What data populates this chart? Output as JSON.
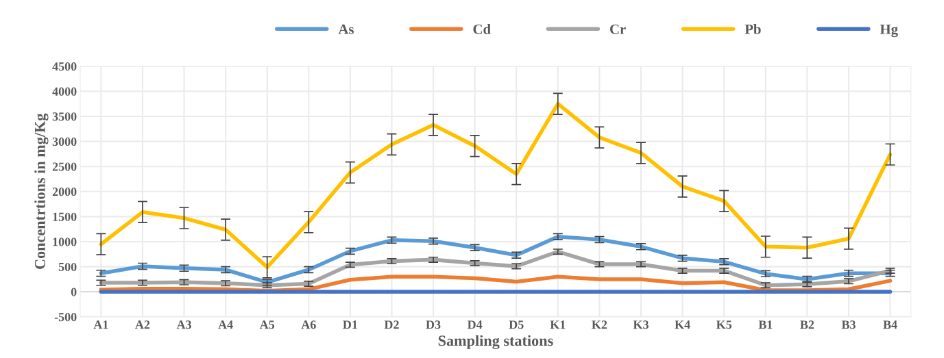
{
  "chart_data": {
    "type": "line",
    "xlabel": "Sampling stations",
    "ylabel": "Concentrtions in mg/Kg",
    "categories": [
      "A1",
      "A2",
      "A3",
      "A4",
      "A5",
      "A6",
      "D1",
      "D2",
      "D3",
      "D4",
      "D5",
      "K1",
      "K2",
      "K3",
      "K4",
      "K5",
      "B1",
      "B2",
      "B3",
      "B4"
    ],
    "series": [
      {
        "name": "As",
        "color": "#5b9bd5",
        "values": [
          370,
          510,
          470,
          440,
          190,
          440,
          810,
          1030,
          1010,
          880,
          730,
          1100,
          1040,
          900,
          670,
          600,
          360,
          250,
          370,
          370
        ],
        "errors": [
          60,
          60,
          60,
          60,
          60,
          60,
          60,
          60,
          60,
          60,
          60,
          60,
          60,
          60,
          60,
          60,
          60,
          60,
          60,
          60
        ]
      },
      {
        "name": "Cd",
        "color": "#ed7d31",
        "values": [
          40,
          60,
          60,
          50,
          20,
          50,
          240,
          300,
          300,
          270,
          200,
          300,
          250,
          250,
          170,
          190,
          30,
          30,
          50,
          220
        ]
      },
      {
        "name": "Cr",
        "color": "#a5a5a5",
        "values": [
          180,
          180,
          190,
          170,
          130,
          160,
          540,
          610,
          640,
          570,
          510,
          800,
          550,
          550,
          420,
          420,
          130,
          150,
          210,
          420
        ],
        "errors": [
          50,
          50,
          50,
          50,
          50,
          50,
          50,
          50,
          50,
          50,
          50,
          50,
          50,
          50,
          50,
          50,
          50,
          50,
          50,
          50
        ]
      },
      {
        "name": "Pb",
        "color": "#ffc000",
        "values": [
          950,
          1590,
          1470,
          1240,
          490,
          1390,
          2380,
          2940,
          3330,
          2910,
          2350,
          3750,
          3080,
          2770,
          2100,
          1810,
          900,
          880,
          1060,
          2740
        ],
        "errors": [
          210,
          210,
          210,
          210,
          210,
          210,
          210,
          210,
          210,
          210,
          210,
          210,
          210,
          210,
          210,
          210,
          210,
          210,
          210,
          210
        ]
      },
      {
        "name": "Hg",
        "color": "#4472c4",
        "values": [
          0,
          0,
          0,
          0,
          0,
          0,
          0,
          0,
          0,
          0,
          0,
          0,
          0,
          0,
          0,
          0,
          0,
          0,
          0,
          0
        ]
      }
    ],
    "ylim": [
      -500,
      4500
    ],
    "yticks": [
      -500,
      0,
      500,
      1000,
      1500,
      2000,
      2500,
      3000,
      3500,
      4000,
      4500
    ],
    "grid": true,
    "legend": "top right",
    "marker": "none",
    "line_style": "solid"
  }
}
